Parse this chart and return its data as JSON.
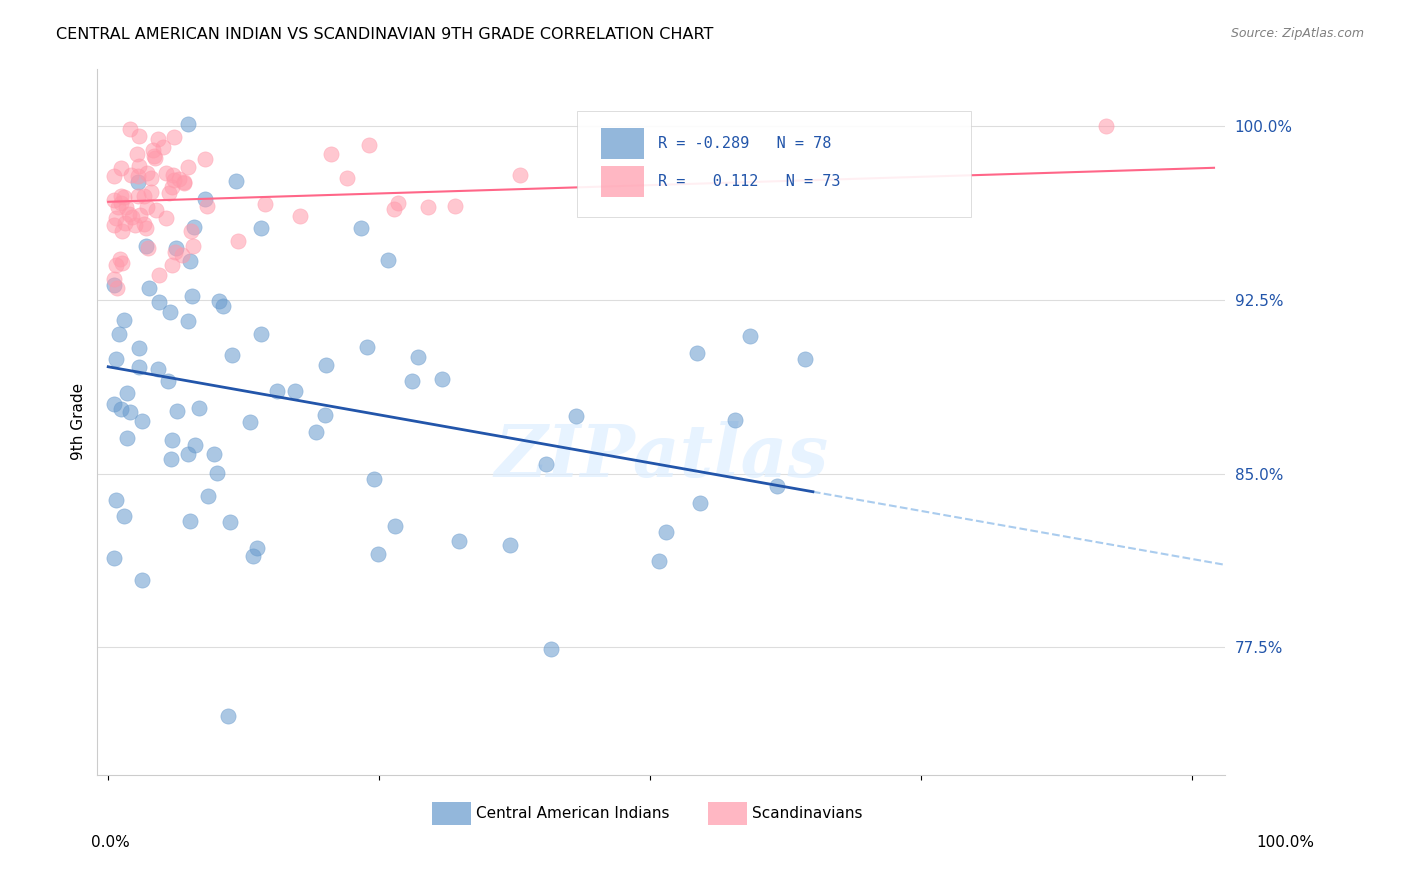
{
  "title": "CENTRAL AMERICAN INDIAN VS SCANDINAVIAN 9TH GRADE CORRELATION CHART",
  "source": "Source: ZipAtlas.com",
  "ylabel": "9th Grade",
  "y_ticks": [
    0.775,
    0.85,
    0.925,
    1.0
  ],
  "y_tick_labels": [
    "77.5%",
    "85.0%",
    "92.5%",
    "100.0%"
  ],
  "xlim": [
    -0.01,
    1.03
  ],
  "ylim": [
    0.72,
    1.025
  ],
  "blue_R": -0.289,
  "blue_N": 78,
  "pink_R": 0.112,
  "pink_N": 73,
  "blue_color": "#6699CC",
  "pink_color": "#FF99AA",
  "blue_line_color": "#2255AA",
  "pink_line_color": "#FF6688",
  "dash_line_color": "#AACCEE",
  "legend_label_blue": "Central American Indians",
  "legend_label_pink": "Scandinavians",
  "background_color": "#FFFFFF",
  "grid_color": "#DDDDDD",
  "watermark": "ZIPatlas"
}
